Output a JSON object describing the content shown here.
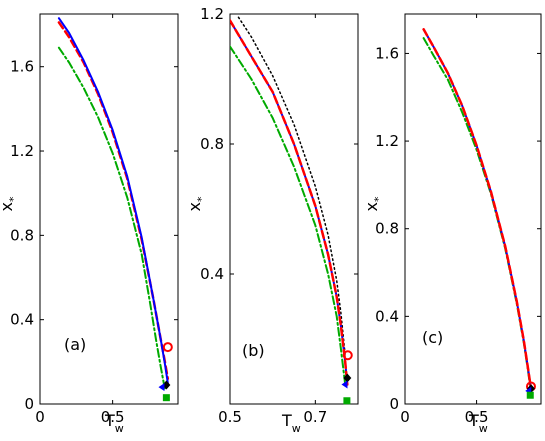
{
  "chart_data": [
    {
      "type": "line",
      "panel_label": "(a)",
      "xlabel": "T",
      "xlabel_sub": "w",
      "ylabel": "x",
      "ylabel_sub": "*",
      "xlim": [
        0,
        0.95
      ],
      "ylim": [
        0,
        1.85
      ],
      "xticks": [
        {
          "v": 0,
          "label": "0"
        },
        {
          "v": 0.5,
          "label": "0.5"
        }
      ],
      "yticks": [
        {
          "v": 0,
          "label": "0"
        },
        {
          "v": 0.4,
          "label": "0.4"
        },
        {
          "v": 0.8,
          "label": "0.8"
        },
        {
          "v": 1.2,
          "label": "1.2"
        },
        {
          "v": 1.6,
          "label": "1.6"
        }
      ],
      "series": [
        {
          "color": "#ff0000",
          "dash": "7,4",
          "width": 2.5,
          "x": [
            0.13,
            0.2,
            0.3,
            0.4,
            0.5,
            0.6,
            0.7,
            0.78,
            0.83,
            0.86,
            0.88
          ],
          "y": [
            1.81,
            1.74,
            1.62,
            1.47,
            1.29,
            1.07,
            0.78,
            0.5,
            0.31,
            0.2,
            0.12
          ]
        },
        {
          "color": "#0000ff",
          "dash": "",
          "width": 2,
          "x": [
            0.13,
            0.2,
            0.3,
            0.4,
            0.5,
            0.6,
            0.7,
            0.78,
            0.83,
            0.86,
            0.88
          ],
          "y": [
            1.83,
            1.76,
            1.63,
            1.48,
            1.3,
            1.08,
            0.79,
            0.5,
            0.31,
            0.19,
            0.1
          ]
        },
        {
          "color": "#00aa00",
          "dash": "8,3,2,3",
          "width": 2,
          "x": [
            0.13,
            0.2,
            0.3,
            0.4,
            0.5,
            0.6,
            0.7,
            0.76,
            0.8,
            0.83,
            0.86
          ],
          "y": [
            1.69,
            1.62,
            1.5,
            1.36,
            1.19,
            0.98,
            0.71,
            0.47,
            0.3,
            0.18,
            0.07
          ]
        }
      ],
      "markers": [
        {
          "shape": "circle-open",
          "color": "#ff0000",
          "x": 0.88,
          "y": 0.27
        },
        {
          "shape": "diamond",
          "color": "#000000",
          "x": 0.87,
          "y": 0.09
        },
        {
          "shape": "triangle-left",
          "color": "#0000ff",
          "x": 0.85,
          "y": 0.08
        },
        {
          "shape": "square",
          "color": "#00aa00",
          "x": 0.87,
          "y": 0.03
        }
      ]
    },
    {
      "type": "line",
      "panel_label": "(b)",
      "xlabel": "T",
      "xlabel_sub": "w",
      "ylabel": "x",
      "ylabel_sub": "*",
      "xlim": [
        0.5,
        0.8
      ],
      "ylim": [
        0,
        1.2
      ],
      "xticks": [
        {
          "v": 0.5,
          "label": "0.5"
        },
        {
          "v": 0.7,
          "label": "0.7"
        }
      ],
      "yticks": [
        {
          "v": 0.4,
          "label": "0.4"
        },
        {
          "v": 0.8,
          "label": "0.8"
        },
        {
          "v": 1.2,
          "label": "1.2"
        }
      ],
      "series": [
        {
          "color": "#000000",
          "dash": "1.5,3",
          "width": 1.5,
          "x": [
            0.52,
            0.55,
            0.6,
            0.65,
            0.7,
            0.73,
            0.75,
            0.76,
            0.77
          ],
          "y": [
            1.19,
            1.13,
            1.01,
            0.86,
            0.67,
            0.52,
            0.38,
            0.28,
            0.15
          ]
        },
        {
          "color": "#0000ff",
          "dash": "",
          "width": 2,
          "x": [
            0.5,
            0.55,
            0.6,
            0.65,
            0.7,
            0.73,
            0.75,
            0.76,
            0.77,
            0.775
          ],
          "y": [
            1.18,
            1.07,
            0.96,
            0.8,
            0.61,
            0.46,
            0.33,
            0.24,
            0.13,
            0.06
          ]
        },
        {
          "color": "#ff0000",
          "dash": "7,4",
          "width": 2.5,
          "x": [
            0.5,
            0.55,
            0.6,
            0.65,
            0.7,
            0.73,
            0.75,
            0.76,
            0.77,
            0.775
          ],
          "y": [
            1.18,
            1.07,
            0.96,
            0.8,
            0.61,
            0.46,
            0.33,
            0.24,
            0.13,
            0.06
          ]
        },
        {
          "color": "#00aa00",
          "dash": "8,3,2,3",
          "width": 2,
          "x": [
            0.5,
            0.55,
            0.6,
            0.65,
            0.7,
            0.73,
            0.75,
            0.76,
            0.77
          ],
          "y": [
            1.1,
            1.0,
            0.88,
            0.73,
            0.55,
            0.4,
            0.27,
            0.17,
            0.06
          ]
        }
      ],
      "markers": [
        {
          "shape": "circle-open",
          "color": "#ff0000",
          "x": 0.776,
          "y": 0.15
        },
        {
          "shape": "diamond",
          "color": "#000000",
          "x": 0.775,
          "y": 0.08
        },
        {
          "shape": "triangle-left",
          "color": "#0000ff",
          "x": 0.773,
          "y": 0.06
        },
        {
          "shape": "square",
          "color": "#00aa00",
          "x": 0.774,
          "y": 0.01
        }
      ]
    },
    {
      "type": "line",
      "panel_label": "(c)",
      "xlabel": "T",
      "xlabel_sub": "w",
      "ylabel": "x",
      "ylabel_sub": "*",
      "xlim": [
        0,
        0.95
      ],
      "ylim": [
        0,
        1.78
      ],
      "xticks": [
        {
          "v": 0,
          "label": "0"
        },
        {
          "v": 0.5,
          "label": "0.5"
        }
      ],
      "yticks": [
        {
          "v": 0,
          "label": "0"
        },
        {
          "v": 0.4,
          "label": "0.4"
        },
        {
          "v": 0.8,
          "label": "0.8"
        },
        {
          "v": 1.2,
          "label": "1.2"
        },
        {
          "v": 1.6,
          "label": "1.6"
        }
      ],
      "series": [
        {
          "color": "#00aa00",
          "dash": "8,3,2,3",
          "width": 2,
          "x": [
            0.13,
            0.2,
            0.3,
            0.4,
            0.5,
            0.6,
            0.7,
            0.78,
            0.83,
            0.86,
            0.88
          ],
          "y": [
            1.67,
            1.59,
            1.48,
            1.33,
            1.16,
            0.96,
            0.71,
            0.46,
            0.28,
            0.15,
            0.05
          ]
        },
        {
          "color": "#0000ff",
          "dash": "",
          "width": 2,
          "x": [
            0.13,
            0.2,
            0.3,
            0.4,
            0.5,
            0.6,
            0.7,
            0.78,
            0.83,
            0.86,
            0.88
          ],
          "y": [
            1.71,
            1.63,
            1.51,
            1.36,
            1.18,
            0.97,
            0.72,
            0.47,
            0.29,
            0.16,
            0.07
          ]
        },
        {
          "color": "#ff0000",
          "dash": "7,4",
          "width": 2.5,
          "x": [
            0.13,
            0.2,
            0.3,
            0.4,
            0.5,
            0.6,
            0.7,
            0.78,
            0.83,
            0.86,
            0.88
          ],
          "y": [
            1.71,
            1.63,
            1.51,
            1.36,
            1.18,
            0.97,
            0.72,
            0.47,
            0.29,
            0.16,
            0.07
          ]
        }
      ],
      "markers": [
        {
          "shape": "circle-open",
          "color": "#ff0000",
          "x": 0.88,
          "y": 0.08
        },
        {
          "shape": "diamond",
          "color": "#000000",
          "x": 0.88,
          "y": 0.07
        },
        {
          "shape": "triangle-left",
          "color": "#0000ff",
          "x": 0.875,
          "y": 0.06
        },
        {
          "shape": "square",
          "color": "#00aa00",
          "x": 0.875,
          "y": 0.04
        }
      ]
    }
  ]
}
